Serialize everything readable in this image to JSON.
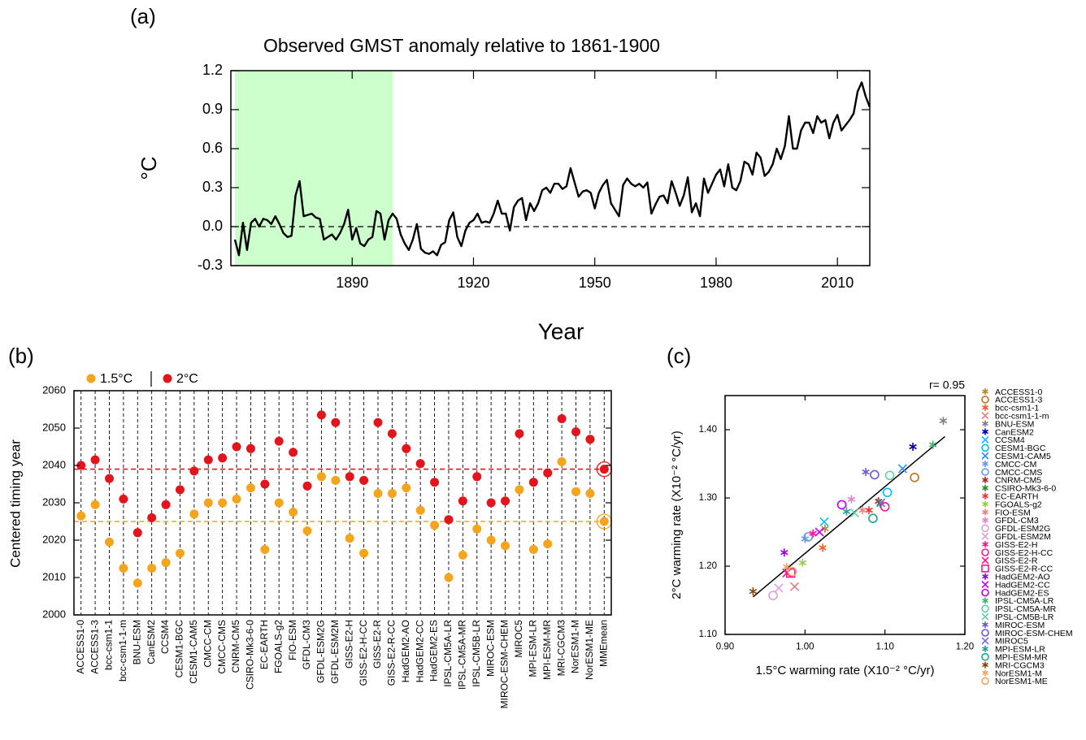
{
  "chart_data": [
    {
      "type": "line",
      "panel_label": "(a)",
      "title": "Observed GMST anomaly relative to 1861-1900",
      "xlabel": "Year",
      "ylabel": "°C",
      "color": "#000000",
      "shade": [
        1861,
        1900
      ],
      "shade_color": "#ccffcc",
      "reference_line": 0,
      "xlim": [
        1860,
        2018
      ],
      "xticks": [
        1890,
        1920,
        1950,
        1980,
        2010
      ],
      "ylim": [
        -0.3,
        1.2
      ],
      "yticks": [
        -0.3,
        {
          "value": 0,
          "label": "0.0"
        },
        0.3,
        0.6,
        0.9,
        1.2
      ],
      "x": [
        1861,
        1862,
        1863,
        1864,
        1865,
        1866,
        1867,
        1868,
        1869,
        1870,
        1871,
        1872,
        1873,
        1874,
        1875,
        1876,
        1877,
        1878,
        1879,
        1880,
        1881,
        1882,
        1883,
        1884,
        1885,
        1886,
        1887,
        1888,
        1889,
        1890,
        1891,
        1892,
        1893,
        1894,
        1895,
        1896,
        1897,
        1898,
        1899,
        1900,
        1901,
        1902,
        1903,
        1904,
        1905,
        1906,
        1907,
        1908,
        1909,
        1910,
        1911,
        1912,
        1913,
        1914,
        1915,
        1916,
        1917,
        1918,
        1919,
        1920,
        1921,
        1922,
        1923,
        1924,
        1925,
        1926,
        1927,
        1928,
        1929,
        1930,
        1931,
        1932,
        1933,
        1934,
        1935,
        1936,
        1937,
        1938,
        1939,
        1940,
        1941,
        1942,
        1943,
        1944,
        1945,
        1946,
        1947,
        1948,
        1949,
        1950,
        1951,
        1952,
        1953,
        1954,
        1955,
        1956,
        1957,
        1958,
        1959,
        1960,
        1961,
        1962,
        1963,
        1964,
        1965,
        1966,
        1967,
        1968,
        1969,
        1970,
        1971,
        1972,
        1973,
        1974,
        1975,
        1976,
        1977,
        1978,
        1979,
        1980,
        1981,
        1982,
        1983,
        1984,
        1985,
        1986,
        1987,
        1988,
        1989,
        1990,
        1991,
        1992,
        1993,
        1994,
        1995,
        1996,
        1997,
        1998,
        1999,
        2000,
        2001,
        2002,
        2003,
        2004,
        2005,
        2006,
        2007,
        2008,
        2009,
        2010,
        2011,
        2012,
        2013,
        2014,
        2015,
        2016,
        2017,
        2018
      ],
      "values": [
        -0.1,
        -0.22,
        0.03,
        -0.18,
        0.03,
        0.06,
        0.0,
        0.06,
        0.05,
        0.02,
        0.08,
        0.02,
        -0.05,
        -0.08,
        -0.07,
        0.24,
        0.35,
        0.08,
        0.09,
        0.1,
        0.07,
        0.06,
        -0.1,
        -0.08,
        -0.06,
        -0.1,
        -0.05,
        0.02,
        0.13,
        -0.1,
        -0.01,
        -0.13,
        -0.15,
        -0.1,
        -0.08,
        0.12,
        0.1,
        -0.1,
        0.05,
        0.1,
        0.06,
        -0.06,
        -0.13,
        -0.18,
        -0.1,
        0.02,
        -0.17,
        -0.2,
        -0.21,
        -0.19,
        -0.22,
        -0.14,
        -0.12,
        0.05,
        0.11,
        -0.08,
        -0.15,
        -0.03,
        0.03,
        0.05,
        0.1,
        0.03,
        0.04,
        0.03,
        0.1,
        0.2,
        0.1,
        0.1,
        -0.03,
        0.15,
        0.2,
        0.22,
        0.05,
        0.18,
        0.12,
        0.18,
        0.28,
        0.3,
        0.26,
        0.33,
        0.33,
        0.29,
        0.31,
        0.45,
        0.34,
        0.23,
        0.27,
        0.28,
        0.26,
        0.14,
        0.26,
        0.32,
        0.36,
        0.18,
        0.13,
        0.08,
        0.32,
        0.37,
        0.33,
        0.31,
        0.33,
        0.3,
        0.34,
        0.1,
        0.17,
        0.23,
        0.24,
        0.18,
        0.35,
        0.26,
        0.16,
        0.24,
        0.38,
        0.11,
        0.18,
        0.08,
        0.37,
        0.26,
        0.33,
        0.4,
        0.44,
        0.31,
        0.48,
        0.3,
        0.28,
        0.35,
        0.5,
        0.48,
        0.4,
        0.57,
        0.53,
        0.39,
        0.42,
        0.48,
        0.6,
        0.52,
        0.62,
        0.85,
        0.6,
        0.6,
        0.74,
        0.8,
        0.8,
        0.72,
        0.85,
        0.8,
        0.82,
        0.68,
        0.8,
        0.86,
        0.74,
        0.78,
        0.82,
        0.87,
        1.04,
        1.11,
        1.0,
        0.92
      ]
    },
    {
      "type": "dot",
      "panel_label": "(b)",
      "ylabel": "Centered timing year",
      "ylim": [
        2000,
        2060
      ],
      "yticks": [
        2000,
        2010,
        2020,
        2030,
        2040,
        2050,
        2060
      ],
      "categories": [
        "ACCESS1-0",
        "ACCESS1-3",
        "bcc-csm1-1",
        "bcc-csm1-1-m",
        "BNU-ESM",
        "CanESM2",
        "CCSM4",
        "CESM1-BGC",
        "CESM1-CAM5",
        "CMCC-CM",
        "CMCC-CMS",
        "CNRM-CM5",
        "CSIRO-Mk3-6-0",
        "EC-EARTH",
        "FGOALS-g2",
        "FIO-ESM",
        "GFDL-CM3",
        "GFDL-ESM2G",
        "GFDL-ESM2M",
        "GISS-E2-H",
        "GISS-E2-H-CC",
        "GISS-E2-R",
        "GISS-E2-R-CC",
        "HadGEM2-AO",
        "HadGEM2-CC",
        "HadGEM2-ES",
        "IPSL-CM5A-LR",
        "IPSL-CM5A-MR",
        "IPSL-CM5B-LR",
        "MIROC-ESM",
        "MIROC-ESM-CHEM",
        "MIROC5",
        "MPI-ESM-LR",
        "MPI-ESM-MR",
        "MRI-CGCM3",
        "NorESM1-M",
        "NorESM1-ME",
        "MMEmean"
      ],
      "series": [
        {
          "name": "1.5°C",
          "color": "#f5a51c",
          "values": [
            2026.5,
            2029.5,
            2019.5,
            2012.5,
            2008.5,
            2012.5,
            2014,
            2016.5,
            2027,
            2030,
            2030,
            2031,
            2034,
            2017.5,
            2030,
            2027.5,
            2022.5,
            2037,
            2036,
            2020.5,
            2016.5,
            2032.5,
            2032.5,
            2034,
            2028,
            2024,
            2010,
            2016,
            2023,
            2020,
            2018.5,
            2033.5,
            2017.5,
            2019,
            2041,
            2033,
            2032.5,
            2025
          ]
        },
        {
          "name": "2°C",
          "color": "#e3141c",
          "values": [
            2040,
            2041.5,
            2036.5,
            2031,
            2022,
            2026,
            2029.5,
            2033.5,
            2038.5,
            2041.5,
            2042,
            2045,
            2044.5,
            2035,
            2046.5,
            2043.5,
            2034.5,
            2053.5,
            2051.5,
            2037,
            2036,
            2051.5,
            2048.5,
            2044.5,
            2040.5,
            2035.5,
            2025.5,
            2030.5,
            2037,
            2030,
            2030.5,
            2048.5,
            2035.5,
            2038,
            2052.5,
            2049,
            2047,
            2039
          ]
        }
      ]
    },
    {
      "type": "scatter",
      "panel_label": "(c)",
      "annotation": "r= 0.95",
      "xlabel": "1.5°C warming rate (X10⁻² °C/yr)",
      "ylabel": "2°C warming rate (X10⁻² °C/yr)",
      "xlim": [
        0.9,
        1.2
      ],
      "xticks": [
        {
          "value": 0.9,
          "label": "0.90"
        },
        {
          "value": 1.0,
          "label": "1.00"
        },
        {
          "value": 1.1,
          "label": "1.10"
        },
        {
          "value": 1.2,
          "label": "1.20"
        }
      ],
      "ylim": [
        1.1,
        1.45
      ],
      "yticks": [
        {
          "value": 1.1,
          "label": "1.10"
        },
        {
          "value": 1.2,
          "label": "1.20"
        },
        {
          "value": 1.3,
          "label": "1.30"
        },
        {
          "value": 1.4,
          "label": "1.40"
        }
      ],
      "fit_line": {
        "x": [
          0.935,
          1.175
        ],
        "y": [
          1.155,
          1.39
        ]
      },
      "series": [
        {
          "name": "ACCESS1-0",
          "color": "#b5892b",
          "marker": "star",
          "x": [
            1.025
          ],
          "values": [
            1.255
          ]
        },
        {
          "name": "ACCESS1-3",
          "color": "#c0741a",
          "marker": "circle",
          "x": [
            1.137
          ],
          "values": [
            1.33
          ]
        },
        {
          "name": "bcc-csm1-1",
          "color": "#ff5a1f",
          "marker": "star",
          "x": [
            1.022
          ],
          "values": [
            1.227
          ]
        },
        {
          "name": "bcc-csm1-1-m",
          "color": "#f07a7a",
          "marker": "cross",
          "x": [
            0.987
          ],
          "values": [
            1.17
          ]
        },
        {
          "name": "BNU-ESM",
          "color": "#808080",
          "marker": "star",
          "x": [
            1.173
          ],
          "values": [
            1.413
          ]
        },
        {
          "name": "CanESM2",
          "color": "#0000aa",
          "marker": "star",
          "x": [
            1.135
          ],
          "values": [
            1.375
          ]
        },
        {
          "name": "CCSM4",
          "color": "#00bfff",
          "marker": "cross",
          "x": [
            1.024
          ],
          "values": [
            1.265
          ]
        },
        {
          "name": "CESM1-BGC",
          "color": "#00bfff",
          "marker": "circle",
          "x": [
            1.103
          ],
          "values": [
            1.308
          ]
        },
        {
          "name": "CESM1-CAM5",
          "color": "#1e90ff",
          "marker": "cross",
          "x": [
            1.122
          ],
          "values": [
            1.343
          ]
        },
        {
          "name": "CMCC-CM",
          "color": "#6495ed",
          "marker": "star",
          "x": [
            1.0
          ],
          "values": [
            1.24
          ]
        },
        {
          "name": "CMCC-CMS",
          "color": "#6495ed",
          "marker": "circle",
          "x": [
            1.004
          ],
          "values": [
            1.243
          ]
        },
        {
          "name": "CNRM-CM5",
          "color": "#b22222",
          "marker": "star",
          "x": [
            1.092
          ],
          "values": [
            1.295
          ]
        },
        {
          "name": "CSIRO-Mk3-6-0",
          "color": "#228b22",
          "marker": "star",
          "x": [
            1.094
          ],
          "values": [
            1.292
          ]
        },
        {
          "name": "EC-EARTH",
          "color": "#ff3030",
          "marker": "star",
          "x": [
            1.08
          ],
          "values": [
            1.282
          ]
        },
        {
          "name": "FGOALS-g2",
          "color": "#9acd32",
          "marker": "star",
          "x": [
            0.997
          ],
          "values": [
            1.205
          ]
        },
        {
          "name": "FIO-ESM",
          "color": "#f08080",
          "marker": "star",
          "x": [
            1.072
          ],
          "values": [
            1.282
          ]
        },
        {
          "name": "GFDL-CM3",
          "color": "#e67fd0",
          "marker": "star",
          "x": [
            1.058
          ],
          "values": [
            1.298
          ]
        },
        {
          "name": "GFDL-ESM2G",
          "color": "#dda0dd",
          "marker": "circle",
          "x": [
            0.96
          ],
          "values": [
            1.157
          ]
        },
        {
          "name": "GFDL-ESM2M",
          "color": "#dda0dd",
          "marker": "cross",
          "x": [
            0.967
          ],
          "values": [
            1.168
          ]
        },
        {
          "name": "GISS-E2-H",
          "color": "#ff1493",
          "marker": "star",
          "x": [
            1.01
          ],
          "values": [
            1.248
          ]
        },
        {
          "name": "GISS-E2-H-CC",
          "color": "#ff1493",
          "marker": "circle",
          "x": [
            1.1
          ],
          "values": [
            1.287
          ]
        },
        {
          "name": "GISS-E2-R",
          "color": "#ff1493",
          "marker": "cross",
          "x": [
            0.977
          ],
          "values": [
            1.19
          ]
        },
        {
          "name": "GISS-E2-R-CC",
          "color": "#ff1493",
          "marker": "square",
          "x": [
            0.982
          ],
          "values": [
            1.19
          ]
        },
        {
          "name": "HadGEM2-AO",
          "color": "#9400d3",
          "marker": "star",
          "x": [
            0.974
          ],
          "values": [
            1.22
          ]
        },
        {
          "name": "HadGEM2-CC",
          "color": "#d000ff",
          "marker": "cross",
          "x": [
            1.018
          ],
          "values": [
            1.25
          ]
        },
        {
          "name": "HadGEM2-ES",
          "color": "#c000e0",
          "marker": "circle",
          "x": [
            1.046
          ],
          "values": [
            1.29
          ]
        },
        {
          "name": "IPSL-CM5A-LR",
          "color": "#3cb371",
          "marker": "star",
          "x": [
            1.16
          ],
          "values": [
            1.378
          ]
        },
        {
          "name": "IPSL-CM5A-MR",
          "color": "#66cdaa",
          "marker": "circle",
          "x": [
            1.106
          ],
          "values": [
            1.333
          ]
        },
        {
          "name": "IPSL-CM5B-LR",
          "color": "#66cdaa",
          "marker": "cross",
          "x": [
            1.062
          ],
          "values": [
            1.278
          ]
        },
        {
          "name": "MIROC-ESM",
          "color": "#6a5acd",
          "marker": "star",
          "x": [
            1.076
          ],
          "values": [
            1.338
          ]
        },
        {
          "name": "MIROC-ESM-CHEM",
          "color": "#6a5acd",
          "marker": "circle",
          "x": [
            1.087
          ],
          "values": [
            1.334
          ]
        },
        {
          "name": "MIROC5",
          "color": "#7b68ee",
          "marker": "cross",
          "x": [
            1.095
          ],
          "values": [
            1.293
          ]
        },
        {
          "name": "MPI-ESM-LR",
          "color": "#1aa39a",
          "marker": "star",
          "x": [
            1.052
          ],
          "values": [
            1.28
          ]
        },
        {
          "name": "MPI-ESM-MR",
          "color": "#1aa39a",
          "marker": "circle",
          "x": [
            1.085
          ],
          "values": [
            1.27
          ]
        },
        {
          "name": "MRI-CGCM3",
          "color": "#8b4513",
          "marker": "star",
          "x": [
            0.935
          ],
          "values": [
            1.163
          ]
        },
        {
          "name": "NorESM1-M",
          "color": "#f4a460",
          "marker": "star",
          "x": [
            0.977
          ],
          "values": [
            1.199
          ]
        },
        {
          "name": "NorESM1-ME",
          "color": "#f4a460",
          "marker": "circle",
          "x": [
            0.984
          ],
          "values": [
            1.192
          ]
        }
      ]
    }
  ]
}
